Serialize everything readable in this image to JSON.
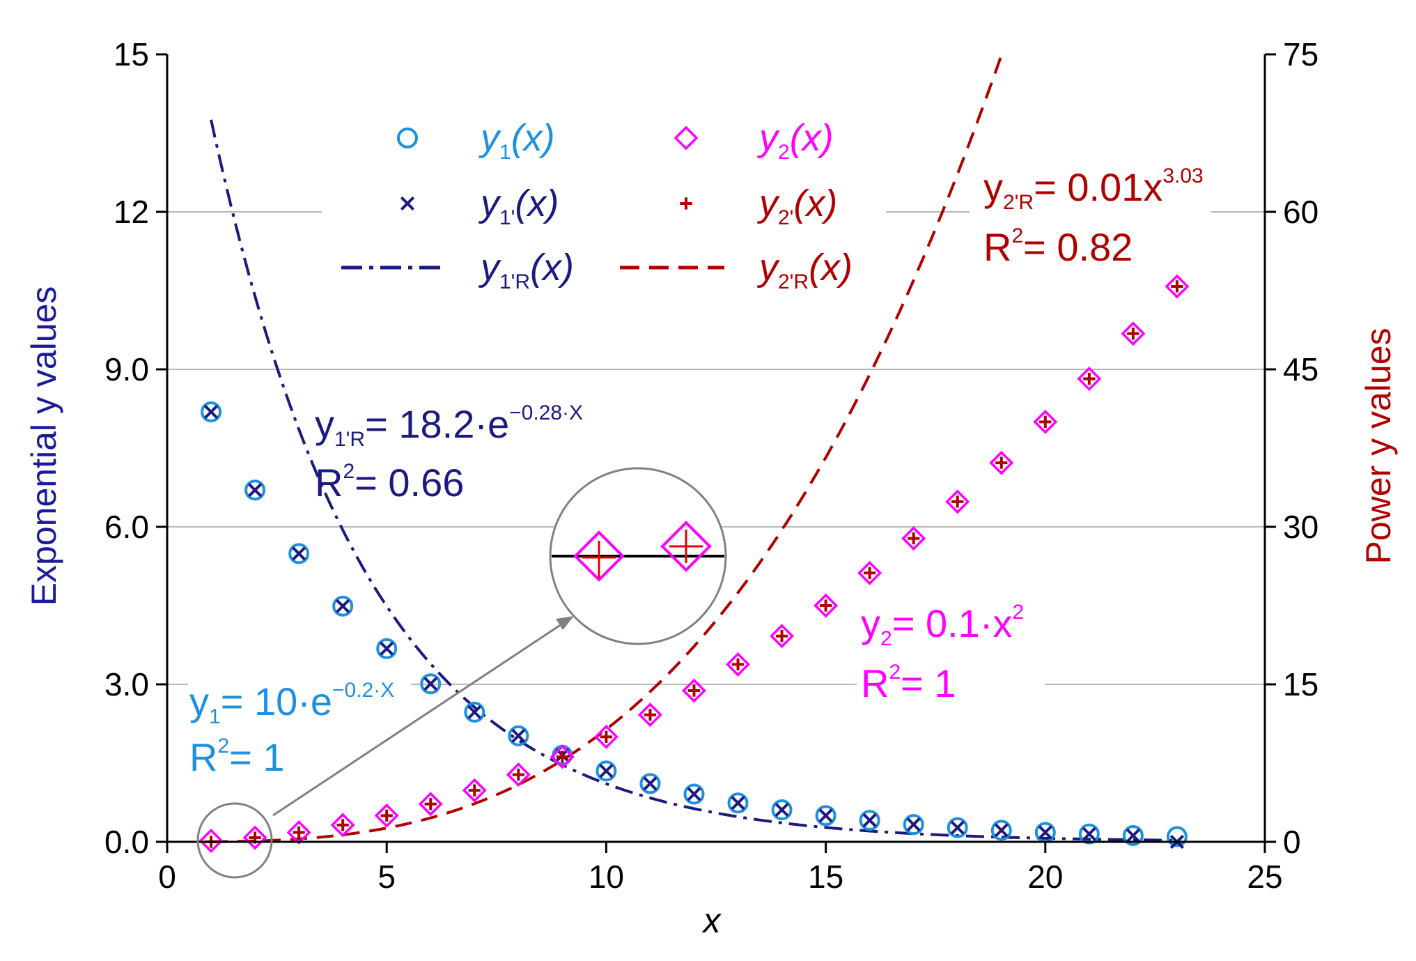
{
  "chart_data": {
    "type": "scatter",
    "x_label": "x",
    "y_left_label": "Exponential y values",
    "y_right_label": "Power y values",
    "xlim": [
      0,
      25
    ],
    "ylim_left": [
      0,
      15
    ],
    "ylim_right": [
      0,
      75
    ],
    "x_ticks": [
      "0",
      "5",
      "10",
      "15",
      "20",
      "25"
    ],
    "y_left_ticks": [
      "0.0",
      "3.0",
      "6.0",
      "9.0",
      "12",
      "15"
    ],
    "y_right_ticks": [
      "0",
      "15",
      "30",
      "45",
      "60",
      "75"
    ],
    "x": [
      1,
      2,
      3,
      4,
      5,
      6,
      7,
      8,
      9,
      10,
      11,
      12,
      13,
      14,
      15,
      16,
      17,
      18,
      19,
      20,
      21,
      22,
      23
    ],
    "series": [
      {
        "name": "y1(x)",
        "axis": "left",
        "marker": "circle",
        "color": "#1E90E0",
        "values": [
          8.19,
          6.7,
          5.49,
          4.49,
          3.68,
          3.01,
          2.47,
          2.02,
          1.65,
          1.35,
          1.11,
          0.91,
          0.74,
          0.61,
          0.5,
          0.41,
          0.33,
          0.27,
          0.22,
          0.18,
          0.15,
          0.12,
          0.1
        ]
      },
      {
        "name": "y1'(x)",
        "axis": "left",
        "marker": "x",
        "color": "#1A1A80",
        "values": [
          8.19,
          6.7,
          5.49,
          4.49,
          3.68,
          3.01,
          2.47,
          2.02,
          1.65,
          1.35,
          1.11,
          0.91,
          0.74,
          0.61,
          0.5,
          0.41,
          0.33,
          0.27,
          0.22,
          0.18,
          0.15,
          0.12,
          0.0
        ]
      },
      {
        "name": "y2(x)",
        "axis": "right",
        "marker": "diamond",
        "color": "#FF00FF",
        "values": [
          0.1,
          0.4,
          0.9,
          1.6,
          2.5,
          3.6,
          4.9,
          6.4,
          8.1,
          10.0,
          12.1,
          14.4,
          16.9,
          19.6,
          22.5,
          25.6,
          28.9,
          32.4,
          36.1,
          40.0,
          44.1,
          48.4,
          52.9
        ]
      },
      {
        "name": "y2'(x)",
        "axis": "right",
        "marker": "plus",
        "color": "#B00000",
        "values": [
          0.0,
          0.4,
          0.9,
          1.6,
          2.5,
          3.6,
          4.9,
          6.4,
          8.1,
          10.0,
          12.1,
          14.4,
          16.9,
          19.6,
          22.5,
          25.6,
          28.9,
          32.4,
          36.1,
          40.0,
          44.1,
          48.4,
          52.9
        ]
      },
      {
        "name": "y1'R(x)",
        "axis": "left",
        "style": "dash-dot",
        "color": "#1A1A80",
        "formula": {
          "a": 18.2,
          "b": -0.28
        },
        "x_range": [
          1,
          23
        ]
      },
      {
        "name": "y2'R(x)",
        "axis": "right",
        "style": "dashed",
        "color": "#B00000",
        "formula": {
          "a": 0.01,
          "p": 3.03
        },
        "x_range": [
          1,
          21
        ]
      }
    ],
    "legend": [
      {
        "marker": "circle",
        "color": "#1E90E0",
        "main": "y",
        "sub": "1",
        "tail": "(x)"
      },
      {
        "marker": "diamond",
        "color": "#FF00FF",
        "main": "y",
        "sub": "2",
        "tail": "(x)"
      },
      {
        "marker": "x",
        "color": "#1A1A80",
        "main": "y",
        "sub": "1'",
        "tail": "(x)"
      },
      {
        "marker": "plus",
        "color": "#B00000",
        "main": "y",
        "sub": "2'",
        "tail": "(x)"
      },
      {
        "marker": "dashdot",
        "color": "#1A1A80",
        "main": "y",
        "sub": "1'R",
        "tail": "(x)"
      },
      {
        "marker": "dashed",
        "color": "#B00000",
        "main": "y",
        "sub": "2'R",
        "tail": "(x)"
      }
    ],
    "annotations": {
      "y1_eq": {
        "pre": "y",
        "sub": "1",
        "mid": "= 10·e",
        "sup": "−0.2·X"
      },
      "y1_r2": {
        "pre": "R",
        "sup": "2",
        "post": "= 1"
      },
      "y1R_eq": {
        "pre": "y",
        "sub": "1'R",
        "mid": "= 18.2·e",
        "sup": "−0.28·X"
      },
      "y1R_r2": {
        "pre": "R",
        "sup": "2",
        "post": "= 0.66"
      },
      "y2_eq": {
        "pre": "y",
        "sub": "2",
        "mid": "= 0.1·x",
        "sup": "2"
      },
      "y2_r2": {
        "pre": "R",
        "sup": "2",
        "post": "= 1"
      },
      "y2R_eq": {
        "pre": "y",
        "sub": "2'R",
        "mid": "= 0.01x",
        "sup": "3.03"
      },
      "y2R_r2": {
        "pre": "R",
        "sup": "2",
        "post": "= 0.82"
      }
    }
  }
}
